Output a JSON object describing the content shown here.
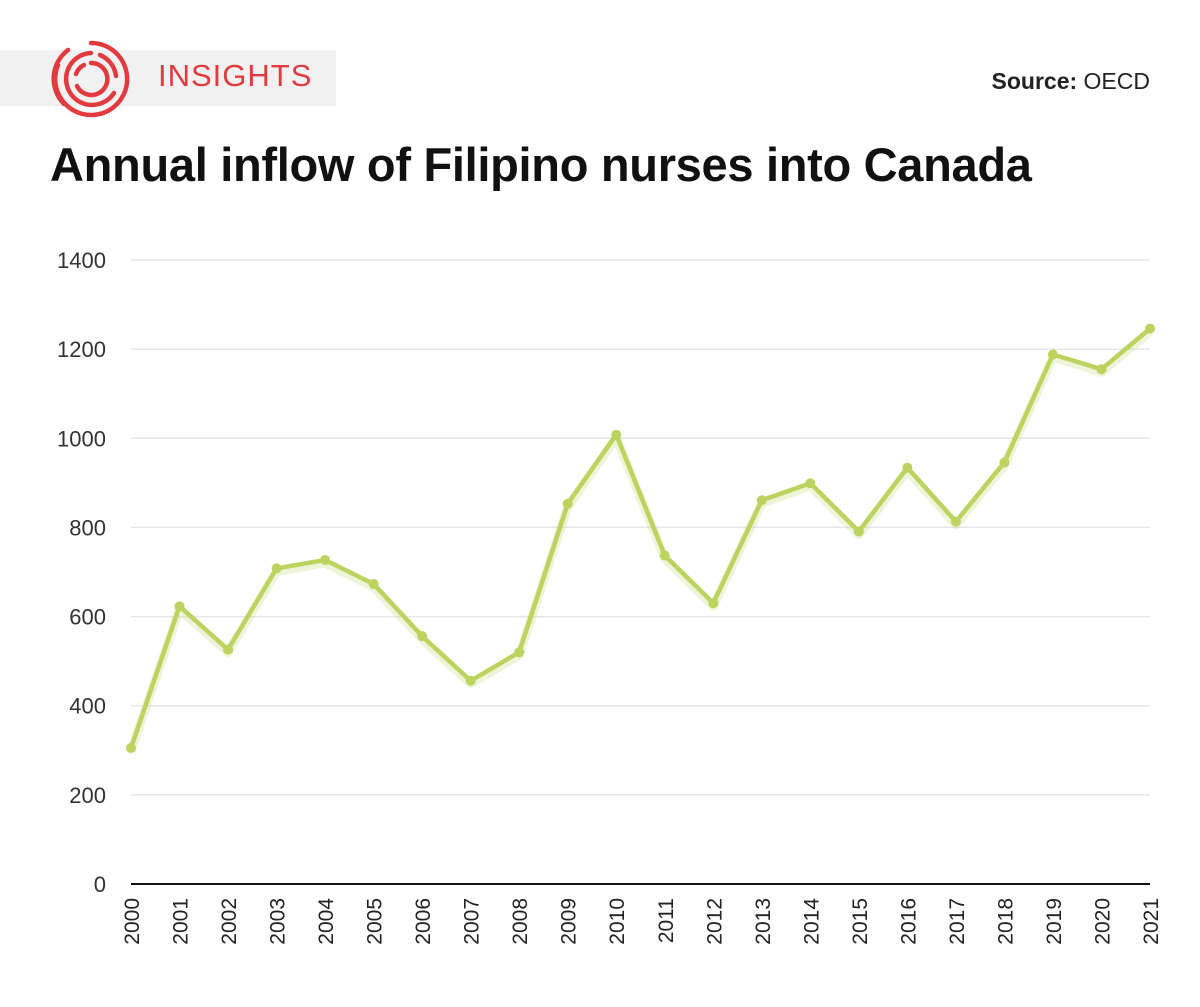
{
  "brand": {
    "name": "INSIGHTS",
    "logo_icon": "concentric-circles-logo-icon",
    "color": "#e23b3f"
  },
  "source": {
    "label": "Source:",
    "value": "OECD"
  },
  "title": "Annual inflow of Filipino nurses into Canada",
  "chart_data": {
    "type": "line",
    "title": "Annual inflow of Filipino nurses into Canada",
    "xlabel": "",
    "ylabel": "",
    "x": [
      "2000",
      "2001",
      "2002",
      "2003",
      "2004",
      "2005",
      "2006",
      "2007",
      "2008",
      "2009",
      "2010",
      "2011",
      "2012",
      "2013",
      "2014",
      "2015",
      "2016",
      "2017",
      "2018",
      "2019",
      "2020",
      "2021"
    ],
    "series": [
      {
        "name": "",
        "values": [
          305,
          623,
          526,
          708,
          727,
          673,
          556,
          456,
          520,
          853,
          1008,
          737,
          630,
          861,
          899,
          791,
          934,
          813,
          946,
          1188,
          1155,
          1246
        ],
        "color": "#bcd35f"
      }
    ],
    "ylim": [
      0,
      1400
    ],
    "yticks": [
      0,
      200,
      400,
      600,
      800,
      1000,
      1200,
      1400
    ],
    "grid": true,
    "x_tick_rotation": "vertical",
    "legend": "none"
  }
}
